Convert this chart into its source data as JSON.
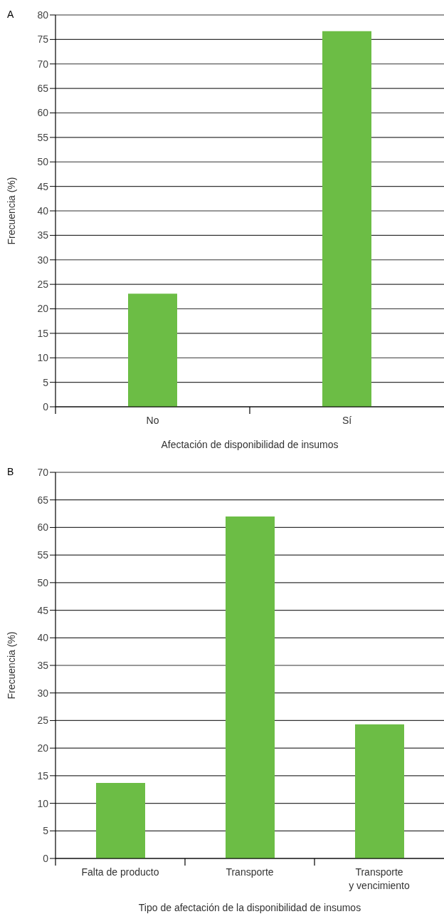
{
  "chart_data": [
    {
      "type": "bar",
      "title": "A",
      "categories": [
        "No",
        "Sí"
      ],
      "values": [
        23.1,
        76.7
      ],
      "color": "#6cbd45",
      "xlabel": "Afectación de disponibilidad de insumos",
      "ylabel": "Frecuencia (%)",
      "ylim": [
        0,
        80
      ],
      "yticks": [
        0,
        5,
        10,
        15,
        20,
        25,
        30,
        35,
        40,
        45,
        50,
        55,
        60,
        65,
        70,
        75,
        80
      ],
      "grid": "y"
    },
    {
      "type": "bar",
      "title": "B",
      "categories": [
        "Falta de producto",
        "Transporte",
        "Transporte\ny vencimiento"
      ],
      "values": [
        13.7,
        62.0,
        24.3
      ],
      "color": "#6cbd45",
      "xlabel": "Tipo de afectación de la disponibilidad de insumos",
      "ylabel": "Frecuencia (%)",
      "ylim": [
        0,
        70
      ],
      "yticks": [
        0,
        5,
        10,
        15,
        20,
        25,
        30,
        35,
        40,
        45,
        50,
        55,
        60,
        65,
        70
      ],
      "grid": "y"
    }
  ]
}
